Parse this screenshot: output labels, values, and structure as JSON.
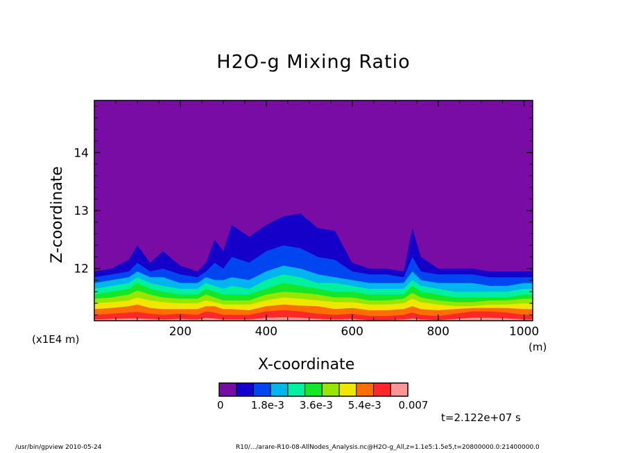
{
  "chart_data": {
    "type": "heatmap",
    "title": "H2O-g Mixing Ratio",
    "xlabel": "X-coordinate",
    "ylabel": "Z-coordinate",
    "x_unit_note": "(m)",
    "y_scale_note": "(x1E4 m)",
    "xlim": [
      0,
      1020
    ],
    "ylim": [
      11.1,
      14.9
    ],
    "x_ticks": [
      200,
      400,
      600,
      800,
      1000
    ],
    "y_ticks": [
      12,
      13,
      14
    ],
    "x_tick_labels": [
      "200",
      "400",
      "600",
      "800",
      "1000"
    ],
    "y_tick_labels": [
      "12",
      "13",
      "14"
    ],
    "colorbar": {
      "colors": [
        "#7a0ca6",
        "#1400c8",
        "#0046f0",
        "#00b4f0",
        "#00f0a0",
        "#14e628",
        "#96e600",
        "#f0e600",
        "#ff6e00",
        "#ff2828",
        "#ff9696"
      ],
      "labels": [
        "0",
        "1.8e-3",
        "3.6e-3",
        "5.4e-3",
        "0.007"
      ],
      "range": [
        0,
        0.007
      ]
    },
    "layer_tops": [
      {
        "x": [
          0,
          40,
          80,
          100,
          130,
          160,
          200,
          240,
          260,
          280,
          300,
          320,
          360,
          400,
          440,
          480,
          520,
          560,
          600,
          640,
          680,
          720,
          740,
          760,
          800,
          840,
          880,
          920,
          960,
          1000,
          1020
        ],
        "z": [
          [
            11.95,
            12.0,
            12.15,
            12.4,
            12.1,
            12.3,
            12.05,
            11.95,
            12.1,
            12.5,
            12.3,
            12.75,
            12.55,
            12.75,
            12.9,
            12.95,
            12.7,
            12.65,
            12.1,
            12.0,
            12.0,
            11.95,
            12.7,
            12.2,
            12.0,
            12.0,
            12.0,
            11.95,
            11.95,
            11.95,
            11.95
          ],
          [
            11.85,
            11.9,
            11.95,
            12.1,
            11.95,
            12.0,
            11.9,
            11.85,
            11.95,
            12.1,
            12.0,
            12.2,
            12.1,
            12.3,
            12.4,
            12.35,
            12.2,
            12.15,
            11.95,
            11.9,
            11.9,
            11.85,
            12.2,
            11.95,
            11.9,
            11.9,
            11.9,
            11.85,
            11.85,
            11.85,
            11.85
          ],
          [
            11.75,
            11.8,
            11.85,
            11.95,
            11.85,
            11.85,
            11.75,
            11.75,
            11.85,
            11.8,
            11.8,
            11.85,
            11.8,
            11.95,
            12.05,
            12.0,
            11.9,
            11.85,
            11.8,
            11.75,
            11.75,
            11.75,
            11.95,
            11.8,
            11.75,
            11.75,
            11.75,
            11.7,
            11.7,
            11.75,
            11.75
          ],
          [
            11.65,
            11.7,
            11.75,
            11.85,
            11.75,
            11.7,
            11.65,
            11.65,
            11.75,
            11.7,
            11.65,
            11.7,
            11.65,
            11.8,
            11.9,
            11.85,
            11.75,
            11.75,
            11.7,
            11.65,
            11.65,
            11.65,
            11.8,
            11.7,
            11.65,
            11.6,
            11.6,
            11.6,
            11.6,
            11.65,
            11.65
          ],
          [
            11.55,
            11.6,
            11.65,
            11.75,
            11.65,
            11.6,
            11.55,
            11.55,
            11.65,
            11.6,
            11.55,
            11.55,
            11.55,
            11.65,
            11.75,
            11.7,
            11.65,
            11.6,
            11.6,
            11.55,
            11.55,
            11.55,
            11.7,
            11.6,
            11.55,
            11.5,
            11.5,
            11.5,
            11.5,
            11.55,
            11.55
          ],
          [
            11.48,
            11.5,
            11.55,
            11.62,
            11.55,
            11.5,
            11.48,
            11.48,
            11.55,
            11.5,
            11.45,
            11.45,
            11.45,
            11.55,
            11.6,
            11.58,
            11.55,
            11.5,
            11.5,
            11.45,
            11.45,
            11.48,
            11.58,
            11.5,
            11.45,
            11.42,
            11.42,
            11.45,
            11.45,
            11.48,
            11.48
          ],
          [
            11.4,
            11.42,
            11.45,
            11.5,
            11.45,
            11.42,
            11.4,
            11.4,
            11.45,
            11.42,
            11.38,
            11.38,
            11.38,
            11.45,
            11.5,
            11.48,
            11.45,
            11.42,
            11.42,
            11.38,
            11.38,
            11.4,
            11.48,
            11.42,
            11.38,
            11.35,
            11.35,
            11.38,
            11.38,
            11.4,
            11.4
          ],
          [
            11.3,
            11.32,
            11.35,
            11.38,
            11.32,
            11.3,
            11.3,
            11.3,
            11.35,
            11.35,
            11.3,
            11.3,
            11.28,
            11.35,
            11.38,
            11.36,
            11.35,
            11.3,
            11.32,
            11.28,
            11.28,
            11.3,
            11.35,
            11.3,
            11.28,
            11.3,
            11.32,
            11.32,
            11.32,
            11.3,
            11.3
          ],
          [
            11.2,
            11.22,
            11.24,
            11.25,
            11.22,
            11.2,
            11.22,
            11.2,
            11.26,
            11.24,
            11.2,
            11.2,
            11.2,
            11.26,
            11.28,
            11.26,
            11.22,
            11.2,
            11.22,
            11.18,
            11.18,
            11.2,
            11.24,
            11.2,
            11.18,
            11.22,
            11.26,
            11.26,
            11.24,
            11.2,
            11.2
          ],
          [
            11.12,
            11.13,
            11.14,
            11.14,
            11.13,
            11.12,
            11.13,
            11.12,
            11.15,
            11.14,
            11.12,
            11.12,
            11.12,
            11.15,
            11.16,
            11.15,
            11.13,
            11.12,
            11.13,
            11.11,
            11.11,
            11.12,
            11.14,
            11.12,
            11.11,
            11.13,
            11.15,
            11.15,
            11.14,
            11.12,
            11.12
          ]
        ]
      }
    ]
  },
  "annotations": {
    "time": "t=2.122e+07 s",
    "footer_left": "/usr/bin/gpview   2010-05-24",
    "footer_right": "R10/.../arare-R10-08-AllNodes_Analysis.nc@H2O-g_All,z=1.1e5:1.5e5,t=20800000.0:21400000.0"
  }
}
